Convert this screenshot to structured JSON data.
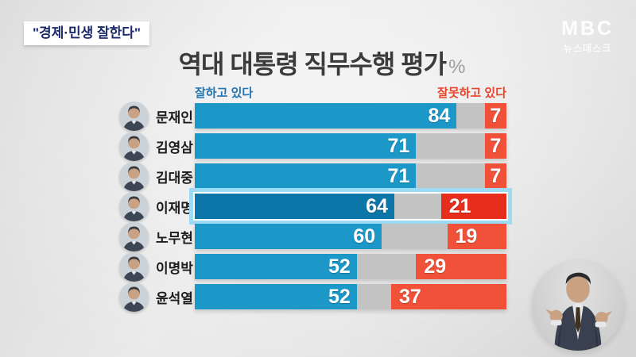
{
  "header": {
    "badge": "\"경제·민생 잘한다\"",
    "broadcaster": "MBC",
    "program": "뉴스데스크"
  },
  "chart_data": {
    "type": "bar",
    "orientation": "horizontal",
    "title": "역대 대통령 직무수행 평가",
    "unit": "%",
    "xlim": [
      0,
      100
    ],
    "grid": false,
    "legend_position": "top",
    "categories": [
      "문재인",
      "김영삼",
      "김대중",
      "이재명",
      "노무현",
      "이명박",
      "윤석열"
    ],
    "series": [
      {
        "name": "잘하고 있다",
        "values": [
          84,
          71,
          71,
          64,
          60,
          52,
          52
        ]
      },
      {
        "name": "잘못하고 있다",
        "values": [
          7,
          7,
          7,
          21,
          19,
          29,
          37
        ]
      }
    ],
    "highlighted_category": "이재명",
    "colors": {
      "positive": "#1b98c8",
      "negative": "#f05138",
      "track": "#c3c3c3",
      "highlight_positive": "#0d76a8",
      "highlight_negative": "#e72d1b",
      "highlight_ring": "#9bdcf4"
    }
  }
}
